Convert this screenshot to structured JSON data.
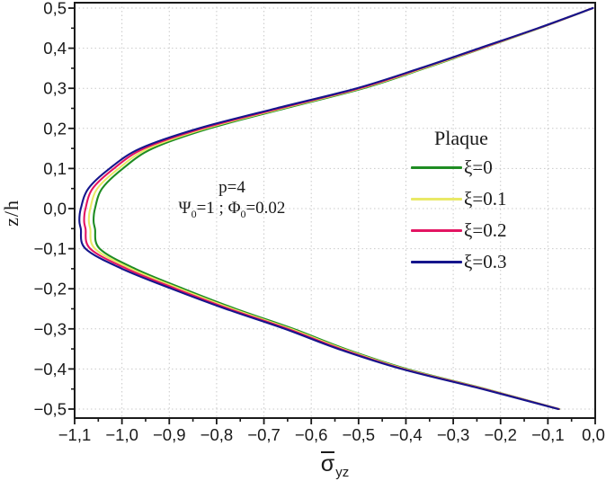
{
  "figure": {
    "background": "#ffffff",
    "frame_color": "#1a1a1a",
    "grid_color": "#c9c9c9",
    "text_color": "#1a1a1a"
  },
  "legend": {
    "title": "Plaque"
  },
  "annotation": {
    "line1": "p=4",
    "psi_symbol": "Ψ",
    "psi_sub": "0",
    "psi_value": "=1 ; ",
    "phi_symbol": "Φ",
    "phi_sub": "0",
    "phi_value": "=0.02"
  },
  "chart_data": {
    "type": "line",
    "title": "",
    "xlabel_main": "σ",
    "xlabel_sub": "yz",
    "ylabel": "z/h",
    "xlim": [
      -1.1,
      0.0
    ],
    "ylim": [
      -0.5225,
      0.5135
    ],
    "grid": {
      "show": true,
      "style": "dotted",
      "on": "major"
    },
    "legend_position": "center-right",
    "x_ticks": {
      "values": [
        -1.1,
        -1.0,
        -0.9,
        -0.8,
        -0.7,
        -0.6,
        -0.5,
        -0.4,
        -0.3,
        -0.2,
        -0.1,
        0.0
      ],
      "labels": [
        "−1,1",
        "−1,0",
        "−0,9",
        "−0,8",
        "−0,7",
        "−0,6",
        "−0,5",
        "−0,4",
        "−0,3",
        "−0,2",
        "−0,1",
        "0,0"
      ]
    },
    "y_ticks": {
      "values": [
        0.5,
        0.4,
        0.3,
        0.2,
        0.1,
        0.0,
        -0.1,
        -0.2,
        -0.3,
        -0.4,
        -0.5
      ],
      "labels": [
        "0,5",
        "0,4",
        "0,3",
        "0,2",
        "0,1",
        "0,0",
        "−0,1",
        "−0,2",
        "−0,3",
        "−0,4",
        "−0,5"
      ]
    },
    "minor_tick_step": 0.05,
    "z": [
      0.5,
      0.45,
      0.4,
      0.35,
      0.3,
      0.25,
      0.2,
      0.15,
      0.1,
      0.05,
      0.0,
      -0.03,
      -0.05,
      -0.1,
      -0.15,
      -0.2,
      -0.25,
      -0.3,
      -0.35,
      -0.4,
      -0.45,
      -0.5
    ],
    "series": [
      {
        "label": "ξ=0",
        "color": "#1e8c22",
        "sigma": [
          -0.005,
          -0.118,
          -0.238,
          -0.36,
          -0.49,
          -0.655,
          -0.815,
          -0.935,
          -0.998,
          -1.042,
          -1.057,
          -1.06,
          -1.057,
          -1.047,
          -0.972,
          -0.87,
          -0.76,
          -0.638,
          -0.528,
          -0.398,
          -0.232,
          -0.076
        ]
      },
      {
        "label": "ξ=0.1",
        "color": "#e9e966",
        "sigma": [
          -0.005,
          -0.119,
          -0.24,
          -0.363,
          -0.495,
          -0.661,
          -0.823,
          -0.944,
          -1.007,
          -1.052,
          -1.067,
          -1.07,
          -1.067,
          -1.057,
          -0.981,
          -0.878,
          -0.767,
          -0.644,
          -0.533,
          -0.402,
          -0.234,
          -0.077
        ]
      },
      {
        "label": "ξ=0.2",
        "color": "#e31562",
        "sigma": [
          -0.005,
          -0.12,
          -0.242,
          -0.367,
          -0.499,
          -0.667,
          -0.83,
          -0.953,
          -1.017,
          -1.062,
          -1.077,
          -1.08,
          -1.077,
          -1.067,
          -0.99,
          -0.886,
          -0.774,
          -0.65,
          -0.538,
          -0.406,
          -0.236,
          -0.077
        ]
      },
      {
        "label": "ξ=0.3",
        "color": "#15158c",
        "sigma": [
          -0.005,
          -0.121,
          -0.245,
          -0.37,
          -0.504,
          -0.674,
          -0.838,
          -0.961,
          -1.026,
          -1.071,
          -1.087,
          -1.09,
          -1.087,
          -1.077,
          -1.0,
          -0.895,
          -0.781,
          -0.656,
          -0.543,
          -0.409,
          -0.239,
          -0.078
        ]
      }
    ]
  }
}
